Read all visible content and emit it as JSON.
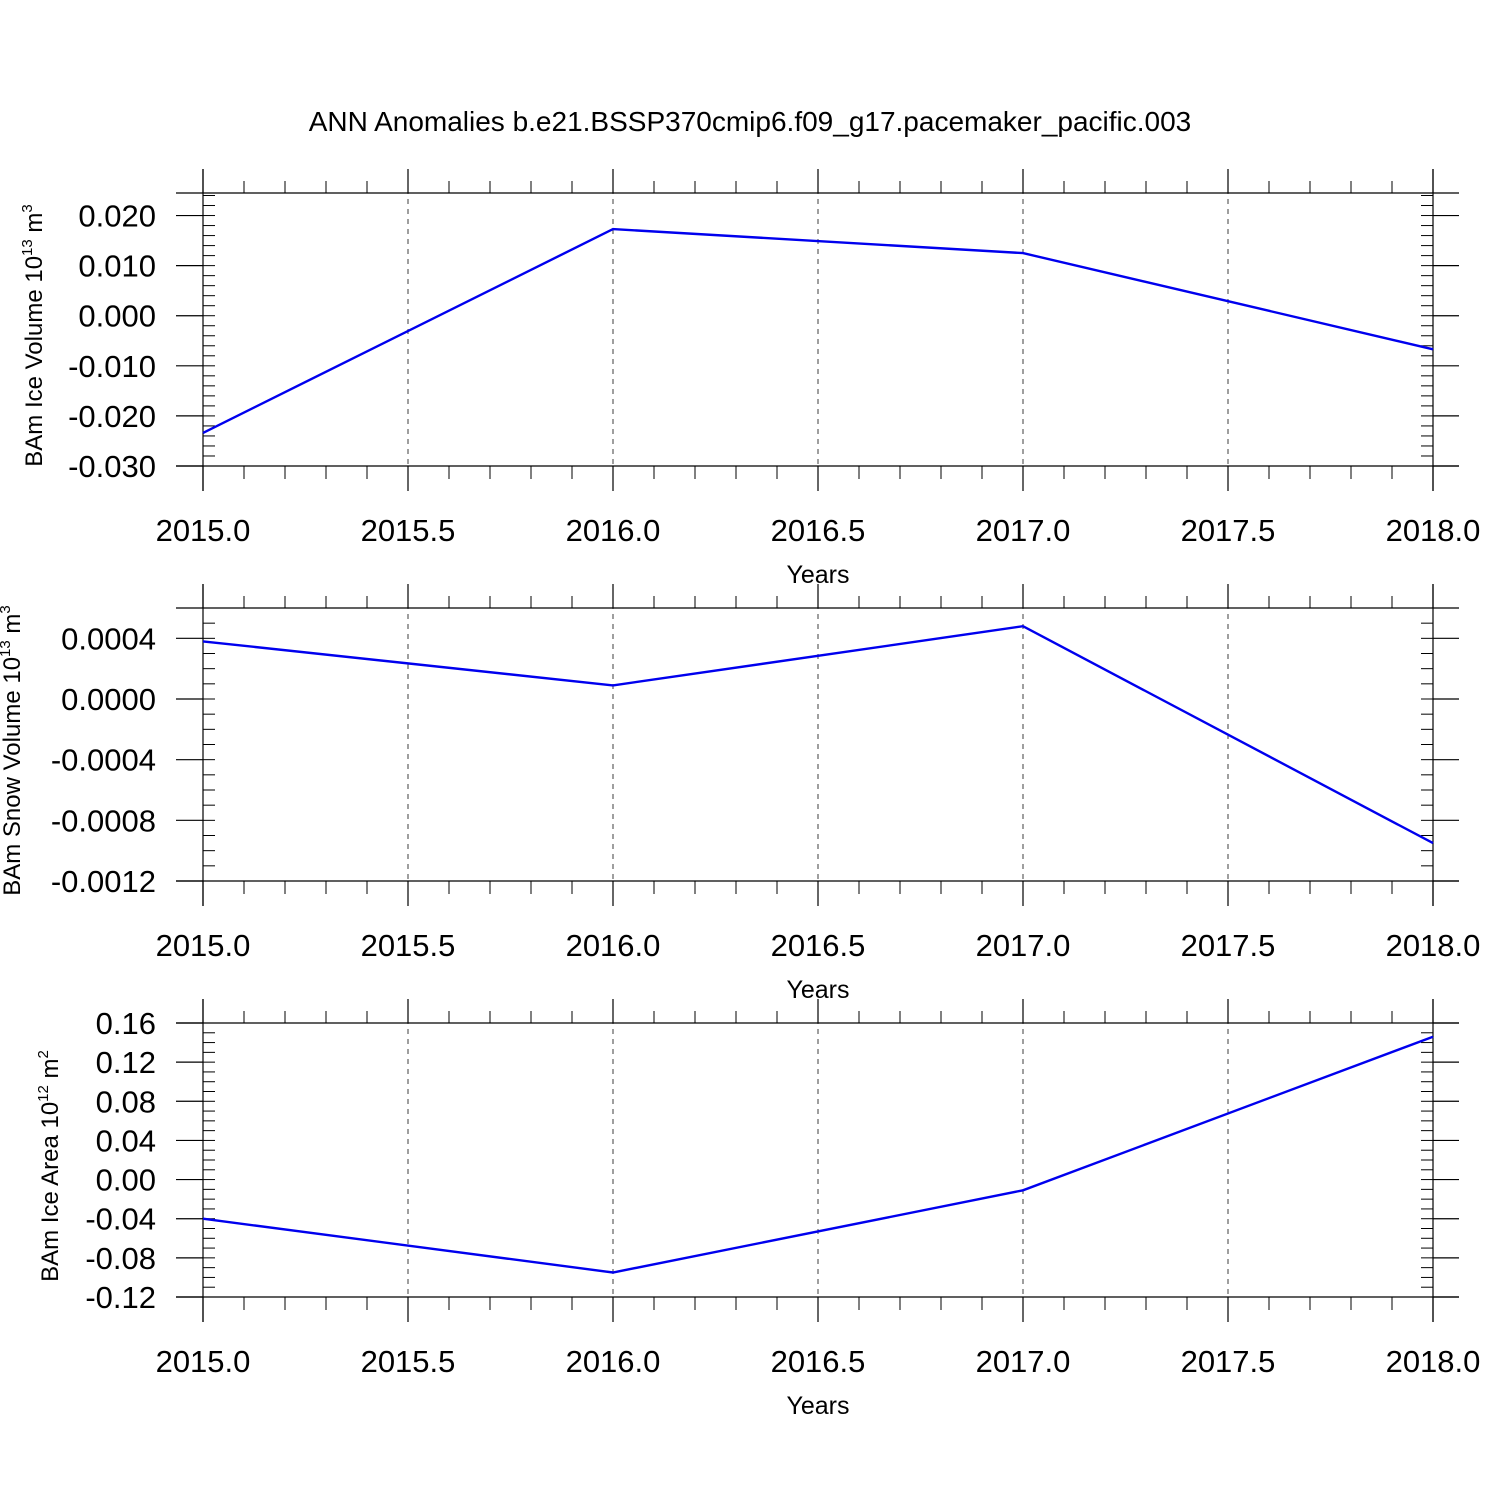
{
  "title": "ANN Anomalies b.e21.BSSP370cmip6.f09_g17.pacemaker_pacific.003",
  "line_color": "#0000ee",
  "chart_data": [
    {
      "type": "line",
      "title": "",
      "xlabel": "Years",
      "ylabel": "BAm Ice Volume 10¹³ m³",
      "ylabel_parts": {
        "text": "BAm Ice Volume 10",
        "exp": "13",
        "unit": " m",
        "unit_exp": "3"
      },
      "xlim": [
        2015.0,
        2018.0
      ],
      "ylim": [
        -0.03,
        0.0245
      ],
      "x_ticks": [
        "2015.0",
        "2015.5",
        "2016.0",
        "2016.5",
        "2017.0",
        "2017.5",
        "2018.0"
      ],
      "y_ticks": [
        "0.020",
        "0.010",
        "0.000",
        "-0.010",
        "-0.020",
        "-0.030"
      ],
      "grid": "vertical dashed",
      "series": [
        {
          "x": [
            2015,
            2016,
            2017,
            2018
          ],
          "values": [
            -0.0234,
            0.0173,
            0.0125,
            -0.0067
          ]
        }
      ]
    },
    {
      "type": "line",
      "title": "",
      "xlabel": "Years",
      "ylabel": "BAm Snow Volume 10¹³ m³",
      "ylabel_parts": {
        "text": "BAm Snow Volume 10",
        "exp": "13",
        "unit": " m",
        "unit_exp": "3"
      },
      "xlim": [
        2015.0,
        2018.0
      ],
      "ylim": [
        -0.0012,
        0.0006
      ],
      "x_ticks": [
        "2015.0",
        "2015.5",
        "2016.0",
        "2016.5",
        "2017.0",
        "2017.5",
        "2018.0"
      ],
      "y_ticks": [
        "0.0004",
        "0.0000",
        "-0.0004",
        "-0.0008",
        "-0.0012"
      ],
      "grid": "vertical dashed",
      "series": [
        {
          "x": [
            2015,
            2016,
            2017,
            2018
          ],
          "values": [
            0.00038,
            9e-05,
            0.00048,
            -0.00095
          ]
        }
      ]
    },
    {
      "type": "line",
      "title": "",
      "xlabel": "Years",
      "ylabel": "BAm Ice Area 10¹² m²",
      "ylabel_parts": {
        "text": "BAm Ice Area 10",
        "exp": "12",
        "unit": " m",
        "unit_exp": "2"
      },
      "xlim": [
        2015.0,
        2018.0
      ],
      "ylim": [
        -0.12,
        0.16
      ],
      "x_ticks": [
        "2015.0",
        "2015.5",
        "2016.0",
        "2016.5",
        "2017.0",
        "2017.5",
        "2018.0"
      ],
      "y_ticks": [
        "0.16",
        "0.12",
        "0.08",
        "0.04",
        "0.00",
        "-0.04",
        "-0.08",
        "-0.12"
      ],
      "grid": "vertical dashed",
      "series": [
        {
          "x": [
            2015,
            2016,
            2017,
            2018
          ],
          "values": [
            -0.04,
            -0.095,
            -0.011,
            0.146
          ]
        }
      ]
    }
  ]
}
